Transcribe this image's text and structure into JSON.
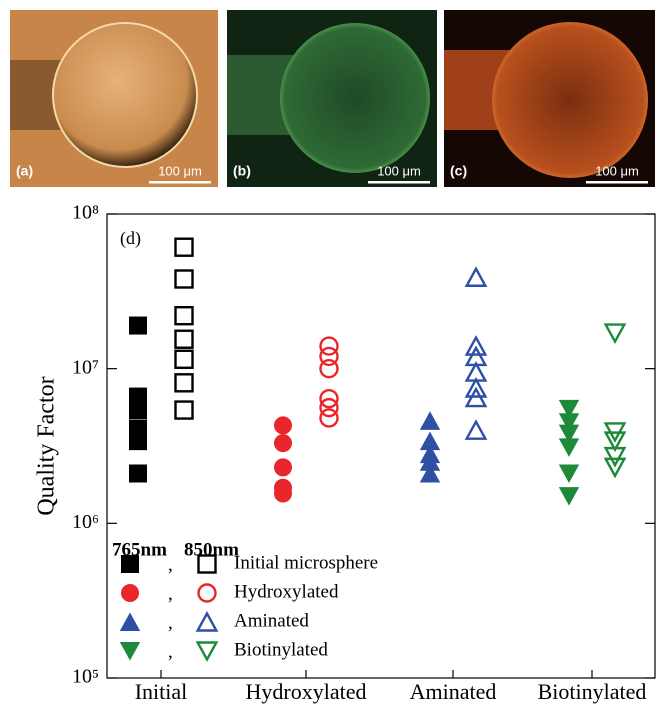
{
  "panels": [
    {
      "label": "(a)",
      "scale_bar": "100 μm"
    },
    {
      "label": "(b)",
      "scale_bar": "100 μm"
    },
    {
      "label": "(c)",
      "scale_bar": "100 μm"
    }
  ],
  "chart_data": {
    "type": "scatter",
    "panel_label": "(d)",
    "y_label": "Quality Factor",
    "categories": [
      "Initial",
      "Hydroxylated",
      "Aminated",
      "Biotinylated"
    ],
    "y_scale": "log",
    "ylim": [
      100000,
      100000000
    ],
    "yticks": [
      {
        "value": 100000,
        "label": "10⁵"
      },
      {
        "value": 1000000,
        "label": "10⁶"
      },
      {
        "value": 10000000,
        "label": "10⁷"
      },
      {
        "value": 100000000,
        "label": "10⁸"
      }
    ],
    "legend": {
      "headers": [
        "765nm",
        "850nm"
      ],
      "separator": ","
    },
    "series": [
      {
        "name": "Initial microsphere",
        "color": "#000000",
        "marker": "square",
        "values": [
          [
            19000000,
            6600000,
            5400000,
            4100000,
            3400000,
            2100000
          ],
          [
            61000000,
            38000000,
            22000000,
            15500000,
            11500000,
            8100000,
            5400000
          ]
        ]
      },
      {
        "name": "Hydroxylated",
        "color": "#e8262b",
        "marker": "circle",
        "values": [
          [
            4300000,
            3300000,
            2300000,
            1700000,
            1560000
          ],
          [
            14000000,
            12000000,
            10000000,
            6400000,
            5600000,
            4800000
          ]
        ]
      },
      {
        "name": "Aminated",
        "color": "#2e4fa3",
        "marker": "triangle-up",
        "values": [
          [
            4600000,
            3400000,
            2800000,
            2500000,
            2100000
          ],
          [
            39000000,
            14000000,
            12000000,
            9500000,
            7500000,
            6500000,
            4000000
          ]
        ]
      },
      {
        "name": "Biotinylated",
        "color": "#1d8a3a",
        "marker": "triangle-down",
        "values": [
          [
            5500000,
            4500000,
            3800000,
            3100000,
            2100000,
            1500000
          ],
          [
            17000000,
            3900000,
            3400000,
            2700000,
            2300000
          ]
        ]
      }
    ]
  }
}
